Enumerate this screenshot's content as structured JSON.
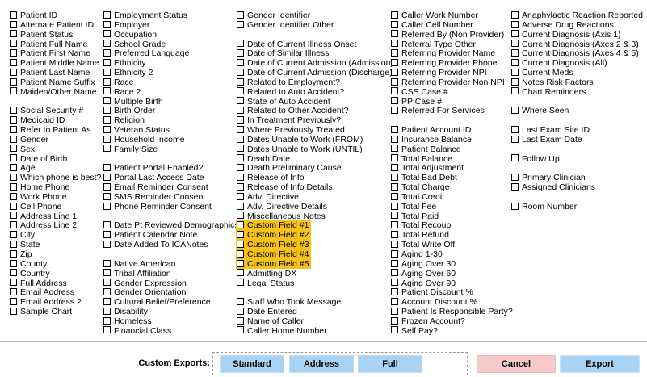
{
  "columns": [
    [
      [
        "Patient ID",
        "Alternate Patient ID",
        "Patient Status",
        "Patient Full Name",
        "Patient First Name",
        "Patient Middle Name",
        "Patient Last Name",
        "Patient Name Suffix",
        "Maiden/Other Name"
      ],
      [
        "Social Security #",
        "Medicaid ID",
        "Refer to Patient As",
        "Gender",
        "Sex",
        "Date of Birth",
        "Age",
        "Which phone is best?",
        "Home Phone",
        "Work Phone",
        "Cell Phone",
        "Address Line 1",
        "Address Line 2",
        "City",
        "State",
        "Zip",
        "County",
        "Country",
        "Full Address",
        "Email Address",
        "Email Address 2",
        "Sample Chart"
      ]
    ],
    [
      [
        "Employment Status",
        "Employer",
        "Occupation",
        "School Grade",
        "Preferred Language",
        "Ethnicity",
        "Ethnicity 2",
        "Race",
        "Race 2",
        "Multiple Birth",
        "Birth Order",
        "Religion",
        "Veteran Status",
        "Household Income",
        "Family Size"
      ],
      [
        "Patient Portal Enabled?",
        "Portal Last Access Date",
        "Email Reminder Consent",
        "SMS Reminder Consent",
        "Phone Reminder Consent"
      ],
      [
        "Date Pt Reviewed Demographics",
        "Patient Calendar Note",
        "Date Added To ICANotes"
      ],
      [
        "Native American",
        "Tribal Affiliation",
        "Gender Expression",
        "Gender Orientation",
        "Cultural Belief/Preference",
        "Disability",
        "Homeless",
        "Financial Class"
      ]
    ],
    [
      [
        "Gender Identifier",
        "Gender Identifier Other"
      ],
      [
        "Date of Current Illness Onset",
        "Date of Similar Illness",
        "Date of Current Admission (Admission)",
        "Date of Current Admission (Discharge)",
        "Related to Employment?",
        "Related to Auto Accident?",
        "State of Auto Accident",
        "Related to Other Accident?",
        "In Treatment Previously?",
        "Where Previously Treated",
        "Dates Unable to Work (FROM)",
        "Dates Unable to Work (UNTIL)",
        "Death Date",
        "Death Preliminary Cause",
        "Release of Info",
        "Release of Info Details",
        "Adv. Directive",
        "Adv. Directive Details",
        "Miscellaneous Notes"
      ],
      [
        "Custom Field #1",
        "Custom Field #2",
        "Custom Field #3",
        "Custom Field #4",
        "Custom Field #5"
      ],
      [
        "Admitting DX",
        "Legal Status"
      ],
      [
        "Staff Who Took Message",
        "Date Entered",
        "Name of Caller",
        "Caller Home Number"
      ]
    ],
    [
      [
        "Caller Work Number",
        "Caller Cell Number",
        "Referred By (Non Provider)",
        "Referral Type Other",
        "Referring Provider Name",
        "Referring Provider Phone",
        "Referring Provider NPI",
        "Referring Provider Non NPI",
        "CSS Case #",
        "PP Case #",
        "Referred For Services"
      ],
      [
        "Patient Account ID",
        "Insurance Balance",
        "Patient Balance",
        "Total Balance",
        "Total Adjustment",
        "Total Bad Debt",
        "Total Charge",
        "Total Credit",
        "Total Fee",
        "Total Paid",
        "Total Recoup",
        "Total Refund",
        "Total Write Off",
        "Aging 1-30",
        "Aging Over 30",
        "Aging Over 60",
        "Aging Over 90",
        "Patient Discount %",
        "Account Discount %",
        "Patient Is Responsible Party?",
        "Frozen Account?",
        "Self Pay?"
      ]
    ],
    [
      [
        "Anaphylactic Reaction Reported",
        "Adverse Drug Reactions",
        "Current Diagnosis (Axis 1)",
        "Current Diagnosis (Axes 2 & 3)",
        "Current Diagnosis (Axes 4 & 5)",
        "Current Diagnosis (All)",
        "Current Meds",
        "Notes Risk Factors",
        "Chart Reminders"
      ],
      [
        "Where Seen"
      ],
      [
        "Last Exam Site ID",
        "Last Exam Date"
      ],
      [
        "Follow Up"
      ],
      [
        "Primary Clinician",
        "Assigned Clinicians"
      ],
      [
        "Room Number"
      ]
    ]
  ],
  "footer": {
    "label": "Custom Exports:",
    "buttons": [
      "Standard",
      "Address",
      "Full"
    ],
    "cancel": "Cancel",
    "export": "Export"
  }
}
